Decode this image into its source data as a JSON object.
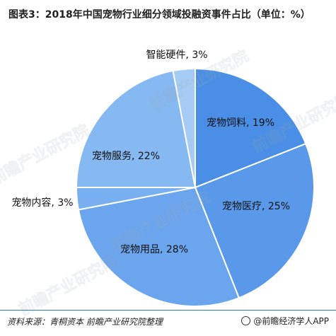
{
  "title": "图表3：2018年中国宠物行业细分领域投融资事件占比（单位：%）",
  "source": "资料来源：青桐资本 前瞻产业研究院整理",
  "brand": "@前瞻经济学人APP",
  "watermark": "前瞻产业研究院",
  "chart_data": {
    "type": "pie",
    "title": "图表3：2018年中国宠物行业细分领域投融资事件占比（单位：%）",
    "unit": "%",
    "slices": [
      {
        "label": "宠物饲料, 19%",
        "name": "宠物饲料",
        "value": 19,
        "color": "#4a8fe5"
      },
      {
        "label": "宠物医疗, 25%",
        "name": "宠物医疗",
        "value": 25,
        "color": "#5a99ea"
      },
      {
        "label": "宠物用品, 28%",
        "name": "宠物用品",
        "value": 28,
        "color": "#6aa5ee"
      },
      {
        "label": "宠物内容, 3%",
        "name": "宠物内容",
        "value": 3,
        "color": "#77aff0"
      },
      {
        "label": "宠物服务, 22%",
        "name": "宠物服务",
        "value": 22,
        "color": "#86b8f1"
      },
      {
        "label": "智能硬件, 3%",
        "name": "智能硬件",
        "value": 3,
        "color": "#a6cbf5"
      }
    ]
  }
}
